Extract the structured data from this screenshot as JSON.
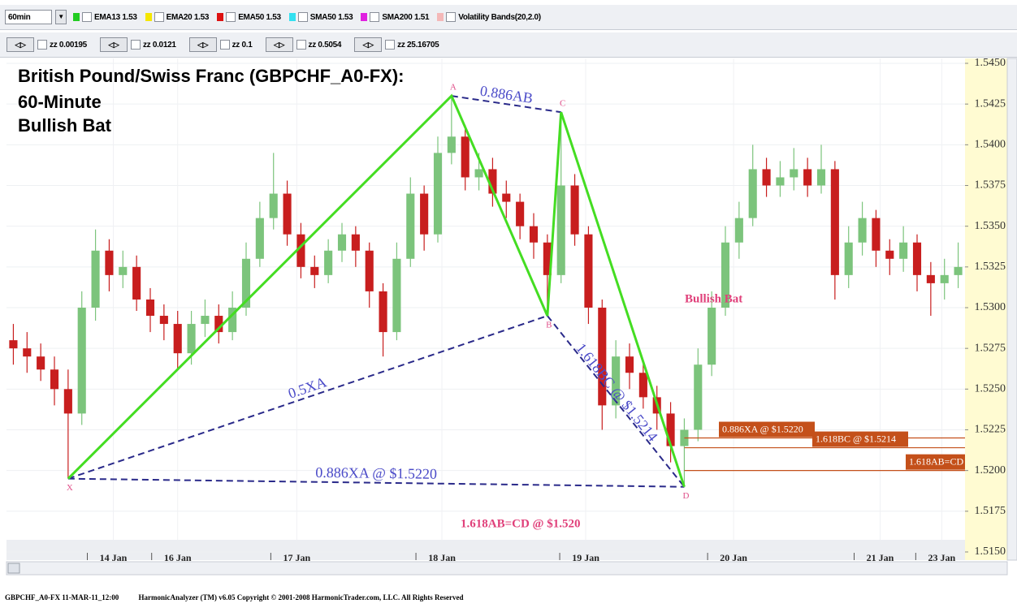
{
  "toolbar": {
    "interval": "60min",
    "indicators": [
      {
        "name": "EMA13 1.53",
        "color": "#22cc22"
      },
      {
        "name": "EMA20 1.53",
        "color": "#f5e600"
      },
      {
        "name": "EMA50 1.53",
        "color": "#dd1111"
      },
      {
        "name": "SMA50 1.53",
        "color": "#33e0f0"
      },
      {
        "name": "SMA200 1.51",
        "color": "#e020e0"
      },
      {
        "name": "Volatility Bands(20,2.0)",
        "color": "#f4b8b8"
      }
    ],
    "zigzag": [
      "zz 0.00195",
      "zz 0.0121",
      "zz 0.1",
      "zz 0.5054",
      "zz 25.16705"
    ]
  },
  "chart_data": {
    "type": "candlestick",
    "title_lines": [
      "British Pound/Swiss Franc (GBPCHF_A0-FX):",
      "60-Minute",
      "Bullish Bat"
    ],
    "open": [
      1.528,
      1.5275,
      1.527,
      1.5262,
      1.525,
      1.5235,
      1.53,
      1.5335,
      1.532,
      1.5325,
      1.5305,
      1.5295,
      1.529,
      1.5272,
      1.529,
      1.5295,
      1.5285,
      1.53,
      1.533,
      1.5355,
      1.537,
      1.5345,
      1.5325,
      1.532,
      1.5335,
      1.5345,
      1.5335,
      1.531,
      1.5285,
      1.533,
      1.537,
      1.5345,
      1.5395,
      1.5405,
      1.538,
      1.5385,
      1.537,
      1.5365,
      1.535,
      1.534,
      1.532,
      1.5375,
      1.5345,
      1.53,
      1.524,
      1.527,
      1.526,
      1.5245,
      1.5235,
      1.5215,
      1.5225,
      1.5265,
      1.53,
      1.534,
      1.5355,
      1.5385,
      1.5375,
      1.538,
      1.5385,
      1.5375,
      1.5385,
      1.532,
      1.534,
      1.5355,
      1.5335,
      1.533,
      1.534,
      1.532,
      1.5315,
      1.532
    ],
    "high": [
      1.529,
      1.5285,
      1.5278,
      1.527,
      1.5262,
      1.531,
      1.5348,
      1.5342,
      1.5335,
      1.5332,
      1.5312,
      1.5302,
      1.5298,
      1.5298,
      1.5305,
      1.5302,
      1.531,
      1.534,
      1.5365,
      1.5395,
      1.5378,
      1.5352,
      1.5332,
      1.5342,
      1.5352,
      1.535,
      1.534,
      1.5315,
      1.534,
      1.538,
      1.5375,
      1.5405,
      1.543,
      1.5412,
      1.5395,
      1.5392,
      1.5378,
      1.537,
      1.5358,
      1.5345,
      1.542,
      1.5382,
      1.535,
      1.5305,
      1.528,
      1.5278,
      1.5268,
      1.5252,
      1.5242,
      1.5232,
      1.5275,
      1.531,
      1.535,
      1.5365,
      1.54,
      1.5392,
      1.539,
      1.5398,
      1.5392,
      1.54,
      1.539,
      1.535,
      1.5365,
      1.536,
      1.5342,
      1.535,
      1.5345,
      1.5328,
      1.533,
      1.534
    ],
    "low": [
      1.5265,
      1.526,
      1.5255,
      1.524,
      1.5195,
      1.5228,
      1.5292,
      1.531,
      1.5312,
      1.5298,
      1.5285,
      1.528,
      1.5262,
      1.5265,
      1.5282,
      1.5278,
      1.528,
      1.5295,
      1.5325,
      1.5348,
      1.5338,
      1.5318,
      1.5312,
      1.5315,
      1.5328,
      1.5325,
      1.53,
      1.527,
      1.528,
      1.5325,
      1.5335,
      1.534,
      1.5388,
      1.5372,
      1.5372,
      1.5362,
      1.5355,
      1.5342,
      1.533,
      1.5295,
      1.5315,
      1.5338,
      1.529,
      1.5225,
      1.5232,
      1.525,
      1.5238,
      1.5225,
      1.5205,
      1.519,
      1.5218,
      1.5258,
      1.5295,
      1.533,
      1.535,
      1.5368,
      1.5368,
      1.5372,
      1.5368,
      1.537,
      1.5305,
      1.5312,
      1.5332,
      1.5325,
      1.532,
      1.5322,
      1.531,
      1.5295,
      1.5305,
      1.5312
    ],
    "close": [
      1.5275,
      1.527,
      1.5262,
      1.525,
      1.5235,
      1.53,
      1.5335,
      1.532,
      1.5325,
      1.5305,
      1.5295,
      1.529,
      1.5272,
      1.529,
      1.5295,
      1.5285,
      1.53,
      1.533,
      1.5355,
      1.537,
      1.5345,
      1.5325,
      1.532,
      1.5335,
      1.5345,
      1.5335,
      1.531,
      1.5285,
      1.533,
      1.537,
      1.5345,
      1.5395,
      1.5405,
      1.538,
      1.5385,
      1.537,
      1.5365,
      1.535,
      1.534,
      1.532,
      1.5375,
      1.5345,
      1.53,
      1.524,
      1.527,
      1.526,
      1.5245,
      1.5235,
      1.5215,
      1.5225,
      1.5265,
      1.53,
      1.534,
      1.5355,
      1.5385,
      1.5375,
      1.538,
      1.5385,
      1.5375,
      1.5385,
      1.532,
      1.534,
      1.5355,
      1.5335,
      1.533,
      1.534,
      1.532,
      1.5315,
      1.532,
      1.5325
    ],
    "up_color": "#7cc47c",
    "down_color": "#c81e1e",
    "ylim": [
      1.5145,
      1.5453
    ],
    "yticks": [
      {
        "value": 1.515,
        "label": "1.5150"
      },
      {
        "value": 1.5175,
        "label": "1.5175"
      },
      {
        "value": 1.52,
        "label": "1.5200"
      },
      {
        "value": 1.5225,
        "label": "1.5225"
      },
      {
        "value": 1.525,
        "label": "1.5250"
      },
      {
        "value": 1.5275,
        "label": "1.5275"
      },
      {
        "value": 1.53,
        "label": "1.5300"
      },
      {
        "value": 1.5325,
        "label": "1.5325"
      },
      {
        "value": 1.535,
        "label": "1.5350"
      },
      {
        "value": 1.5375,
        "label": "1.5375"
      },
      {
        "value": 1.54,
        "label": "1.5400"
      },
      {
        "value": 1.5425,
        "label": "1.5425"
      },
      {
        "value": 1.545,
        "label": "1.5450"
      }
    ],
    "xticks": [
      {
        "value": 7.3,
        "label": "14 Jan"
      },
      {
        "value": 12,
        "label": "16 Jan"
      },
      {
        "value": 20.7,
        "label": "17 Jan"
      },
      {
        "value": 31.3,
        "label": "18 Jan"
      },
      {
        "value": 41.8,
        "label": "19 Jan"
      },
      {
        "value": 52.6,
        "label": "20 Jan"
      },
      {
        "value": 63.3,
        "label": "21 Jan"
      },
      {
        "value": 67.8,
        "label": "23 Jan"
      }
    ],
    "grid": true,
    "pattern": {
      "labels": [
        "X",
        "A",
        "B",
        "C",
        "D"
      ],
      "x": [
        4,
        32,
        39,
        40,
        49
      ],
      "y": [
        1.5195,
        1.543,
        1.5295,
        1.542,
        1.519
      ],
      "color": "#44dd22",
      "leg_labels": [
        "0.5XA",
        "0.886XA @ $1.5220",
        "0.886AB",
        "1.618BC @ $1.5214"
      ],
      "leg_color": "#2a2a8a"
    },
    "levels": [
      {
        "label": "0.886XA @ $1.5220",
        "value": 1.522
      },
      {
        "label": "1.618BC @ $1.5214",
        "value": 1.5214
      },
      {
        "label": "1.618AB=CD",
        "value": 1.52
      }
    ],
    "level_color": "#c4501a",
    "annotations": [
      "Bullish Bat",
      "1.618AB=CD @ $1.520"
    ]
  },
  "footer": [
    "GBPCHF_A0-FX 11-MAR-11_12:00",
    "HarmonicAnalyzer (TM) v6.05 Copyright © 2001-2008 HarmonicTrader.com, LLC. All Rights Reserved"
  ]
}
